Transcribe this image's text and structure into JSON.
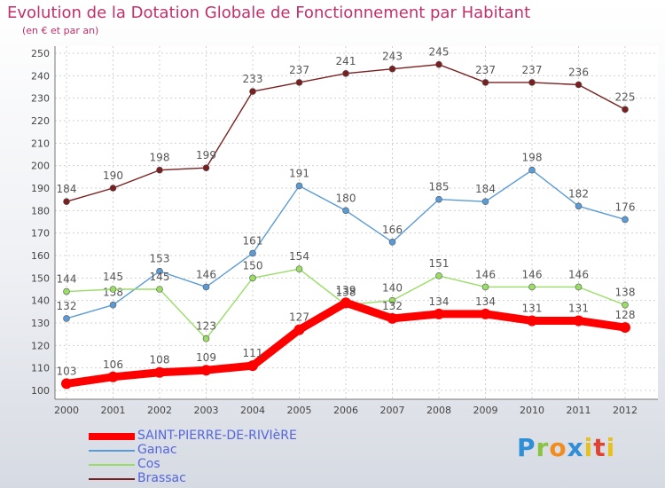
{
  "title": "Evolution de la Dotation Globale de Fonctionnement par Habitant",
  "subtitle": "(en € et par an)",
  "logo": "Proxiti",
  "chart_data": {
    "type": "line",
    "title": "Evolution de la Dotation Globale de Fonctionnement par Habitant",
    "subtitle": "(en € et par an)",
    "xlabel": "",
    "ylabel": "",
    "x": [
      "2000",
      "2001",
      "2002",
      "2003",
      "2004",
      "2005",
      "2006",
      "2007",
      "2008",
      "2009",
      "2010",
      "2011",
      "2012"
    ],
    "ylim": [
      100,
      250
    ],
    "yticks": [
      100,
      110,
      120,
      130,
      140,
      150,
      160,
      170,
      180,
      190,
      200,
      210,
      220,
      230,
      240,
      250
    ],
    "grid": true,
    "legend_position": "bottom-left",
    "series": [
      {
        "name": "SAINT-PIERRE-DE-RIVIèRE",
        "color": "#ff0000",
        "values": [
          103,
          106,
          108,
          109,
          111,
          127,
          139,
          132,
          134,
          134,
          131,
          131,
          128
        ]
      },
      {
        "name": "Ganac",
        "color": "#5b9bd5",
        "values": [
          132,
          138,
          153,
          146,
          161,
          191,
          180,
          166,
          185,
          184,
          198,
          182,
          176
        ]
      },
      {
        "name": "Cos",
        "color": "#99dd66",
        "values": [
          144,
          145,
          145,
          123,
          150,
          154,
          138,
          140,
          151,
          146,
          146,
          146,
          138
        ]
      },
      {
        "name": "Brassac",
        "color": "#7a1f1f",
        "values": [
          184,
          190,
          198,
          199,
          233,
          237,
          241,
          243,
          245,
          237,
          237,
          236,
          225
        ]
      }
    ]
  }
}
